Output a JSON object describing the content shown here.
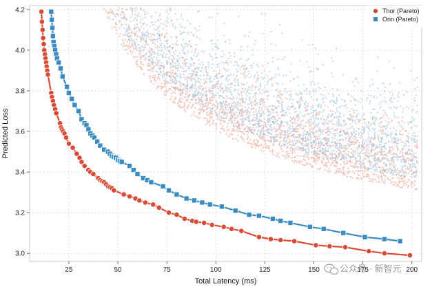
{
  "chart_data": {
    "type": "scatter",
    "xlabel": "Total Latency (ms)",
    "ylabel": "Predicted Loss",
    "xlim": [
      5,
      205
    ],
    "ylim": [
      2.96,
      4.22
    ],
    "x_ticks": [
      25,
      50,
      75,
      100,
      125,
      150,
      175,
      200
    ],
    "y_ticks": [
      3.0,
      3.2,
      3.4,
      3.6,
      3.8,
      4.0,
      4.2
    ],
    "grid": true,
    "legend_position": "top-right",
    "series": [
      {
        "name": "Thor (Pareto)",
        "color": "#d94a34",
        "marker": "circle",
        "points": [
          [
            11,
            4.19
          ],
          [
            11.3,
            4.14
          ],
          [
            11.6,
            4.1
          ],
          [
            11.9,
            4.06
          ],
          [
            12.2,
            4.03
          ],
          [
            12.5,
            4.0
          ],
          [
            12.8,
            3.98
          ],
          [
            13.1,
            3.96
          ],
          [
            13.4,
            3.94
          ],
          [
            13.7,
            3.92
          ],
          [
            14,
            3.9
          ],
          [
            14.3,
            3.88
          ],
          [
            16,
            3.79
          ],
          [
            16.4,
            3.77
          ],
          [
            16.9,
            3.75
          ],
          [
            17.4,
            3.73
          ],
          [
            18,
            3.71
          ],
          [
            18.6,
            3.69
          ],
          [
            20.5,
            3.64
          ],
          [
            21,
            3.62
          ],
          [
            21.5,
            3.61
          ],
          [
            22,
            3.6
          ],
          [
            22.8,
            3.59
          ],
          [
            23.6,
            3.57
          ],
          [
            25,
            3.54
          ],
          [
            27,
            3.52
          ],
          [
            29,
            3.49
          ],
          [
            30.5,
            3.47
          ],
          [
            31.5,
            3.45
          ],
          [
            33,
            3.43
          ],
          [
            35,
            3.41
          ],
          [
            36,
            3.4
          ],
          [
            37.5,
            3.39
          ],
          [
            40,
            3.37
          ],
          [
            41,
            3.36
          ],
          [
            42,
            3.355
          ],
          [
            43,
            3.35
          ],
          [
            44,
            3.34
          ],
          [
            45,
            3.33
          ],
          [
            46,
            3.325
          ],
          [
            47,
            3.32
          ],
          [
            48,
            3.31
          ],
          [
            53,
            3.29
          ],
          [
            56,
            3.28
          ],
          [
            59,
            3.27
          ],
          [
            61,
            3.26
          ],
          [
            64,
            3.25
          ],
          [
            68,
            3.24
          ],
          [
            71,
            3.225
          ],
          [
            76,
            3.2
          ],
          [
            80,
            3.19
          ],
          [
            84,
            3.17
          ],
          [
            88,
            3.16
          ],
          [
            90,
            3.155
          ],
          [
            94,
            3.15
          ],
          [
            98,
            3.14
          ],
          [
            104,
            3.13
          ],
          [
            108,
            3.12
          ],
          [
            113,
            3.11
          ],
          [
            122,
            3.08
          ],
          [
            128,
            3.07
          ],
          [
            133,
            3.065
          ],
          [
            140,
            3.06
          ],
          [
            151,
            3.04
          ],
          [
            158,
            3.035
          ],
          [
            166,
            3.03
          ],
          [
            178,
            3.01
          ],
          [
            186,
            3.0
          ],
          [
            199,
            2.99
          ]
        ]
      },
      {
        "name": "Orin (Pareto)",
        "color": "#3a8bc2",
        "marker": "square",
        "points": [
          [
            16,
            4.19
          ],
          [
            16.3,
            4.15
          ],
          [
            16.6,
            4.11
          ],
          [
            16.9,
            4.07
          ],
          [
            17.2,
            4.04
          ],
          [
            17.6,
            4.02
          ],
          [
            18,
            4.0
          ],
          [
            18.5,
            3.98
          ],
          [
            19,
            3.96
          ],
          [
            19.8,
            3.94
          ],
          [
            20.8,
            3.91
          ],
          [
            21.8,
            3.87
          ],
          [
            24,
            3.82
          ],
          [
            25,
            3.79
          ],
          [
            26.5,
            3.76
          ],
          [
            28,
            3.73
          ],
          [
            30,
            3.7
          ],
          [
            31.5,
            3.66
          ],
          [
            33,
            3.64
          ],
          [
            34,
            3.63
          ],
          [
            35,
            3.61
          ],
          [
            36,
            3.59
          ],
          [
            37,
            3.58
          ],
          [
            38,
            3.57
          ],
          [
            39.5,
            3.55
          ],
          [
            41,
            3.53
          ],
          [
            43,
            3.51
          ],
          [
            45,
            3.5
          ],
          [
            46,
            3.49
          ],
          [
            47,
            3.48
          ],
          [
            48,
            3.475
          ],
          [
            49,
            3.47
          ],
          [
            50,
            3.46
          ],
          [
            51,
            3.455
          ],
          [
            52,
            3.45
          ],
          [
            56,
            3.43
          ],
          [
            58,
            3.41
          ],
          [
            60,
            3.39
          ],
          [
            63,
            3.37
          ],
          [
            65,
            3.36
          ],
          [
            67,
            3.35
          ],
          [
            73,
            3.33
          ],
          [
            76,
            3.31
          ],
          [
            80,
            3.29
          ],
          [
            85,
            3.27
          ],
          [
            89,
            3.26
          ],
          [
            93,
            3.25
          ],
          [
            97,
            3.24
          ],
          [
            103,
            3.23
          ],
          [
            110,
            3.21
          ],
          [
            117,
            3.19
          ],
          [
            122,
            3.185
          ],
          [
            129,
            3.17
          ],
          [
            133,
            3.16
          ],
          [
            138,
            3.15
          ],
          [
            148,
            3.13
          ],
          [
            155,
            3.12
          ],
          [
            165,
            3.1
          ],
          [
            176,
            3.08
          ],
          [
            186,
            3.07
          ],
          [
            194,
            3.06
          ]
        ]
      }
    ],
    "background_samples": [
      {
        "name": "Thor",
        "color": "#e87a66"
      },
      {
        "name": "Orin",
        "color": "#6fa8d6"
      }
    ]
  },
  "watermark": {
    "text": "公众号 · 新智元",
    "icon": "wechat-icon"
  }
}
